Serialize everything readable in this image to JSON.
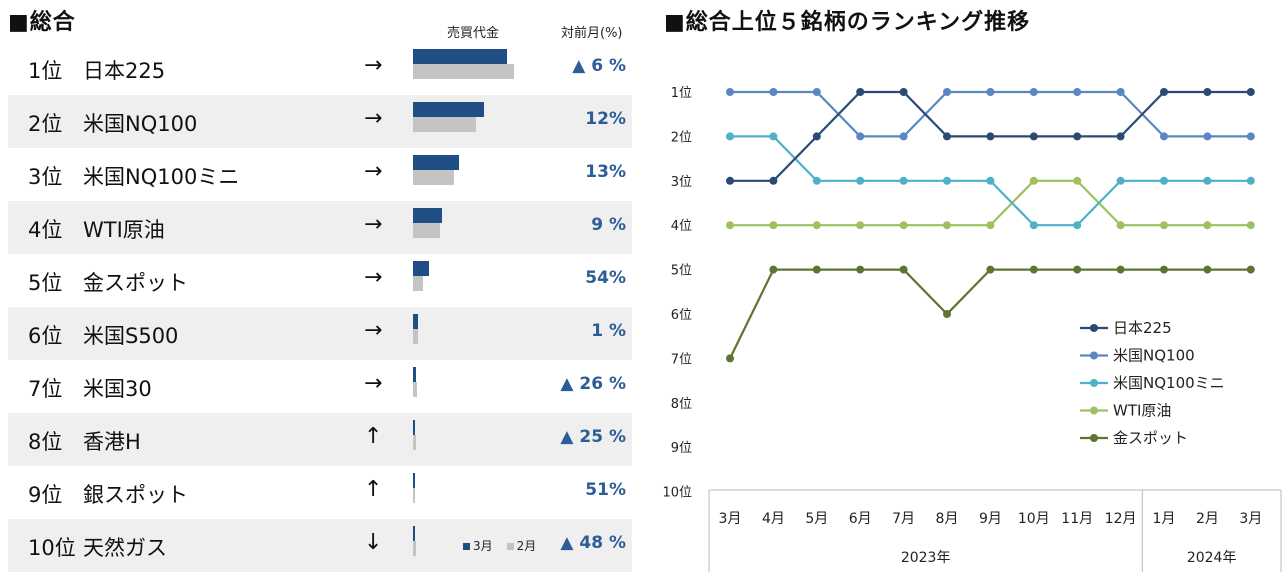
{
  "left_panel": {
    "title": "■総合",
    "header_volume": "売買代金",
    "header_change": "対前月(%)",
    "legend": {
      "march": "3月",
      "feb": "2月"
    },
    "colors": {
      "march": "#1f4e85",
      "feb": "#c4c4c4",
      "pct": "#2c5d97"
    },
    "rows": [
      {
        "rank": "1位",
        "name": "日本225",
        "arrow": "→",
        "vol_mar": 88,
        "vol_feb": 94,
        "change": "▲ 6 %"
      },
      {
        "rank": "2位",
        "name": "米国NQ100",
        "arrow": "→",
        "vol_mar": 66,
        "vol_feb": 59,
        "change": "12%"
      },
      {
        "rank": "3位",
        "name": "米国NQ100ミニ",
        "arrow": "→",
        "vol_mar": 43,
        "vol_feb": 38,
        "change": "13%"
      },
      {
        "rank": "4位",
        "name": "WTI原油",
        "arrow": "→",
        "vol_mar": 27,
        "vol_feb": 25,
        "change": "9 %"
      },
      {
        "rank": "5位",
        "name": "金スポット",
        "arrow": "→",
        "vol_mar": 15,
        "vol_feb": 9,
        "change": "54%"
      },
      {
        "rank": "6位",
        "name": "米国S500",
        "arrow": "→",
        "vol_mar": 5,
        "vol_feb": 5,
        "change": "1 %"
      },
      {
        "rank": "7位",
        "name": "米国30",
        "arrow": "→",
        "vol_mar": 3,
        "vol_feb": 4,
        "change": "▲ 26 %"
      },
      {
        "rank": "8位",
        "name": "香港H",
        "arrow": "↑",
        "vol_mar": 2,
        "vol_feb": 3,
        "change": "▲ 25 %"
      },
      {
        "rank": "9位",
        "name": "銀スポット",
        "arrow": "↑",
        "vol_mar": 2,
        "vol_feb": 1,
        "change": "51%"
      },
      {
        "rank": "10位",
        "name": "天然ガス",
        "arrow": "↓",
        "vol_mar": 2,
        "vol_feb": 3,
        "change": "▲ 48 %"
      }
    ]
  },
  "chart_data": {
    "type": "line",
    "title": "■総合上位５銘柄のランキング推移",
    "categories": [
      "3月",
      "4月",
      "5月",
      "6月",
      "7月",
      "8月",
      "9月",
      "10月",
      "11月",
      "12月",
      "1月",
      "2月",
      "3月"
    ],
    "year_groups": [
      {
        "label": "2023年",
        "count": 10
      },
      {
        "label": "2024年",
        "count": 3
      }
    ],
    "y_labels": [
      "1位",
      "2位",
      "3位",
      "4位",
      "5位",
      "6位",
      "7位",
      "8位",
      "9位",
      "10位"
    ],
    "ylim": [
      1,
      10
    ],
    "series": [
      {
        "name": "日本225",
        "color": "#2b4a73",
        "values": [
          3,
          3,
          2,
          1,
          1,
          2,
          2,
          2,
          2,
          2,
          1,
          1,
          1
        ]
      },
      {
        "name": "米国NQ100",
        "color": "#5a86c2",
        "values": [
          1,
          1,
          1,
          2,
          2,
          1,
          1,
          1,
          1,
          1,
          2,
          2,
          2
        ]
      },
      {
        "name": "米国NQ100ミニ",
        "color": "#4db1c8",
        "values": [
          2,
          2,
          3,
          3,
          3,
          3,
          3,
          4,
          4,
          3,
          3,
          3,
          3
        ]
      },
      {
        "name": "WTI原油",
        "color": "#9dc15f",
        "values": [
          4,
          4,
          4,
          4,
          4,
          4,
          4,
          3,
          3,
          4,
          4,
          4,
          4
        ]
      },
      {
        "name": "金スポット",
        "color": "#5e7531",
        "values": [
          7,
          5,
          5,
          5,
          5,
          6,
          5,
          5,
          5,
          5,
          5,
          5,
          5
        ]
      }
    ]
  }
}
